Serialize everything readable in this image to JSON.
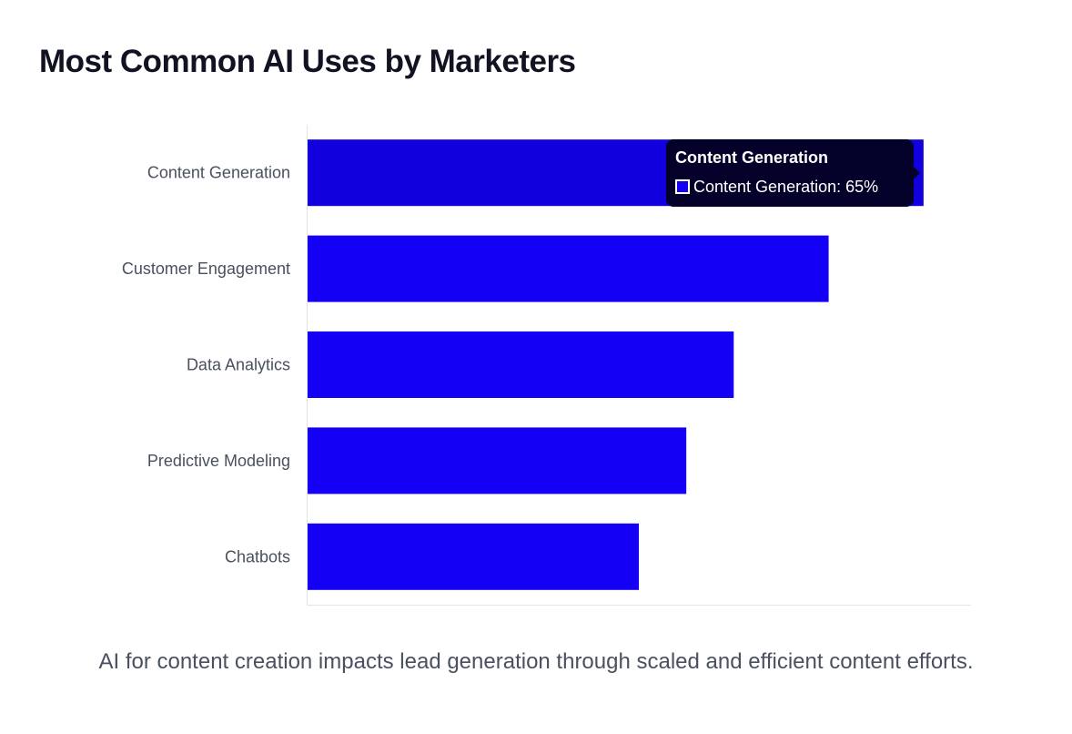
{
  "chart_data": {
    "type": "bar",
    "orientation": "horizontal",
    "title": "Most Common AI Uses by Marketers",
    "categories": [
      "Content Generation",
      "Customer Engagement",
      "Data Analytics",
      "Predictive Modeling",
      "Chatbots"
    ],
    "values": [
      65,
      55,
      45,
      40,
      35
    ],
    "unit": "%",
    "xlim": [
      0,
      70
    ],
    "grid": false,
    "bar_color": "#1400f5",
    "hover_bar_color": "#1100dd",
    "tooltip": {
      "title": "Content Generation",
      "label": "Content Generation: 65%"
    }
  },
  "caption": "AI for content creation impacts lead generation through scaled and efficient content efforts."
}
